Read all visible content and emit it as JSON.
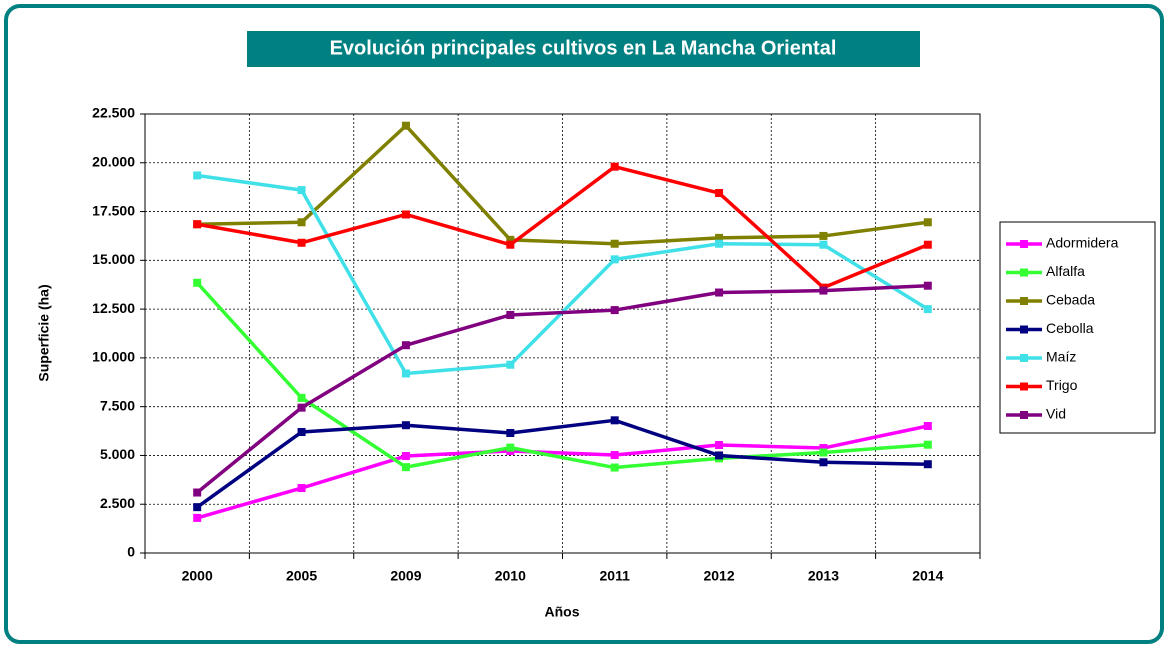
{
  "chart_data": {
    "type": "line",
    "title": "Evolución principales cultivos en La Mancha Oriental",
    "x_label": "Años",
    "y_label": "Superficie (ha)",
    "categories": [
      "2000",
      "2005",
      "2009",
      "2010",
      "2011",
      "2012",
      "2013",
      "2014"
    ],
    "ylim": [
      0,
      22500
    ],
    "yticks": [
      0,
      {
        "value": 2500,
        "label": "2.500"
      },
      {
        "value": 5000,
        "label": "5.000"
      },
      {
        "value": 7500,
        "label": "7.500"
      },
      {
        "value": 10000,
        "label": "10.000"
      },
      {
        "value": 12500,
        "label": "12.500"
      },
      {
        "value": 15000,
        "label": "15.000"
      },
      {
        "value": 17500,
        "label": "17.500"
      },
      {
        "value": 20000,
        "label": "20.000"
      },
      {
        "value": 22500,
        "label": "22.500"
      }
    ],
    "grid": true,
    "legend": "right",
    "series": [
      {
        "name": "Adormidera",
        "color": "#ff00ff",
        "values": [
          1800,
          3330,
          4970,
          5230,
          5020,
          5535,
          5380,
          6510
        ]
      },
      {
        "name": "Alfalfa",
        "color": "#33ff33",
        "values": [
          13850,
          7950,
          4400,
          5400,
          4380,
          4850,
          5150,
          5550
        ]
      },
      {
        "name": "Cebada",
        "color": "#808000",
        "values": [
          16850,
          16950,
          21900,
          16050,
          15850,
          16150,
          16250,
          16950
        ]
      },
      {
        "name": "Cebolla",
        "color": "#000080",
        "values": [
          2350,
          6200,
          6550,
          6150,
          6800,
          5000,
          4650,
          4550
        ]
      },
      {
        "name": "Maíz",
        "color": "#40e0e8",
        "values": [
          19350,
          18600,
          9200,
          9650,
          15050,
          15850,
          15800,
          12500
        ]
      },
      {
        "name": "Trigo",
        "color": "#ff0000",
        "values": [
          16850,
          15900,
          17350,
          15800,
          19800,
          18450,
          13600,
          15800
        ]
      },
      {
        "name": "Vid",
        "color": "#800080",
        "values": [
          3100,
          7450,
          10650,
          12200,
          12450,
          13350,
          13450,
          13700
        ]
      }
    ]
  }
}
